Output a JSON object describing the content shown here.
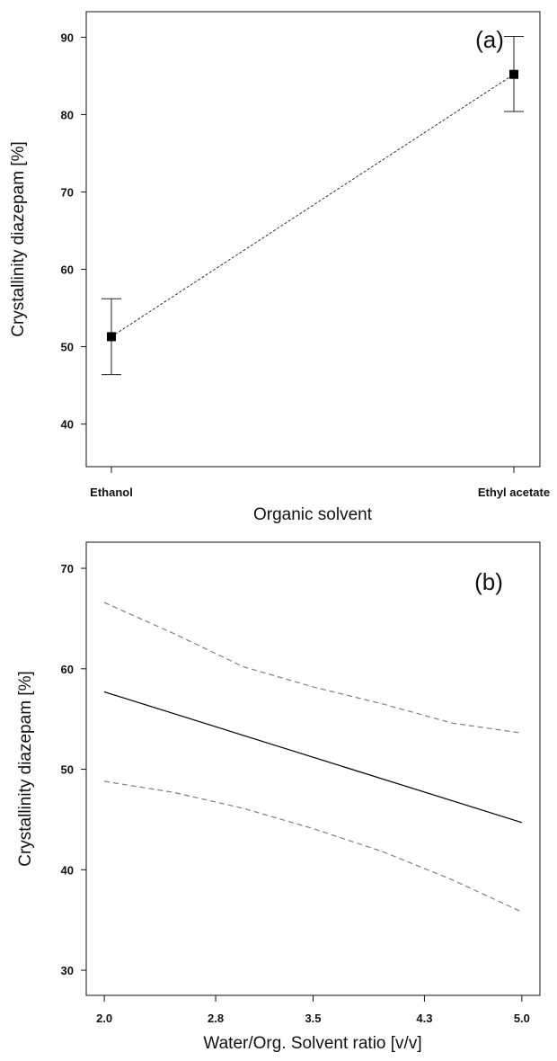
{
  "chart_data": [
    {
      "type": "line",
      "panel_label": "(a)",
      "xlabel": "Organic solvent",
      "ylabel": "Crystallinity diazepam [%]",
      "categories": [
        "Ethanol",
        "Ethyl acetate"
      ],
      "yticks": [
        40,
        50,
        60,
        70,
        80,
        90
      ],
      "ylim": [
        34.5,
        93.3
      ],
      "series": [
        {
          "values": [
            51.3,
            85.2
          ],
          "error_low": [
            46.4,
            80.4
          ],
          "error_high": [
            56.2,
            90.1
          ],
          "marker": "square",
          "line_style": "dotted",
          "color": "#000000"
        }
      ],
      "grid": false
    },
    {
      "type": "line",
      "panel_label": "(b)",
      "xlabel": "Water/Org. Solvent ratio [v/v]",
      "ylabel": "Crystallinity diazepam [%]",
      "xticks": [
        "2.0",
        "2.8",
        "3.5",
        "4.3",
        "5.0"
      ],
      "xlim": [
        1.87,
        5.13
      ],
      "yticks": [
        30,
        40,
        50,
        60,
        70
      ],
      "ylim": [
        27.5,
        72.6
      ],
      "series": [
        {
          "x": [
            2.0,
            5.0
          ],
          "y": [
            57.7,
            44.7
          ],
          "line_style": "solid",
          "color": "#000000"
        },
        {
          "x": [
            2.0,
            2.5,
            3.0,
            3.5,
            4.0,
            4.5,
            5.0
          ],
          "y": [
            66.6,
            63.5,
            60.2,
            58.2,
            56.5,
            54.6,
            53.6
          ],
          "line_style": "dashed",
          "color": "#808080"
        },
        {
          "x": [
            2.0,
            2.5,
            3.0,
            3.5,
            4.0,
            4.5,
            5.0
          ],
          "y": [
            48.8,
            47.7,
            46.1,
            44.1,
            41.8,
            39.0,
            35.8
          ],
          "line_style": "dashed",
          "color": "#808080"
        }
      ],
      "grid": false
    }
  ]
}
